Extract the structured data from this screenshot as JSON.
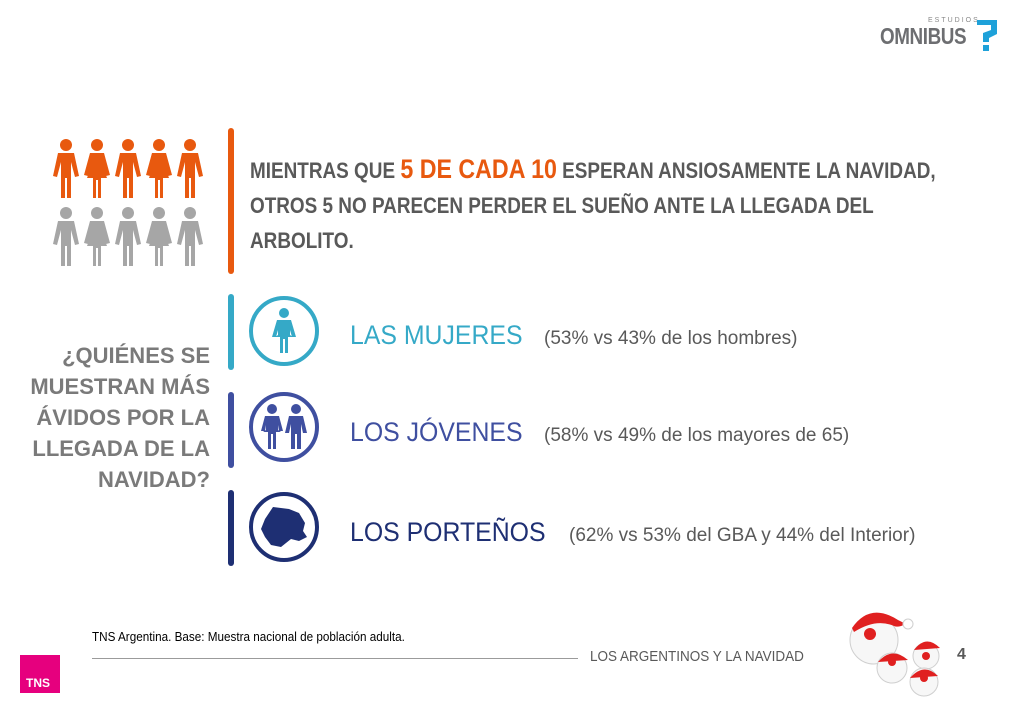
{
  "logo": {
    "small": "ESTUDIOS",
    "name": "OMNIBUS"
  },
  "headline": {
    "pre": "MIENTRAS QUE ",
    "highlight": "5 DE CADA 10",
    "post": " ESPERAN ANSIOSAMENTE LA NAVIDAD, OTROS 5 NO PARECEN PERDER EL SUEÑO ANTE LA LLEGADA DEL ARBOLITO."
  },
  "question": "¿QUIÉNES SE MUESTRAN MÁS ÁVIDOS POR LA LLEGADA DE LA NAVIDAD?",
  "rows": [
    {
      "title": "LAS MUJERES",
      "detail": "(53% vs 43% de los hombres)",
      "color": "#35a9c7",
      "icon": "woman-icon"
    },
    {
      "title": "LOS JÓVENES",
      "detail": "(58% vs 49% de los mayores de 65)",
      "color": "#3f4fa0",
      "icon": "couple-icon"
    },
    {
      "title": "LOS PORTEÑOS",
      "detail": "(62% vs 53% del GBA y 44% del Interior)",
      "color": "#1e2f73",
      "icon": "buenos-aires-map-icon"
    }
  ],
  "colors": {
    "orange": "#e8590f",
    "gray": "#a6a6a6",
    "magenta": "#e6007e"
  },
  "people_highlighted": 5,
  "people_total": 10,
  "footnote": "TNS Argentina. Base: Muestra nacional de población adulta.",
  "footer": {
    "title": "LOS ARGENTINOS Y LA NAVIDAD",
    "page": "4"
  },
  "brand": "TNS"
}
